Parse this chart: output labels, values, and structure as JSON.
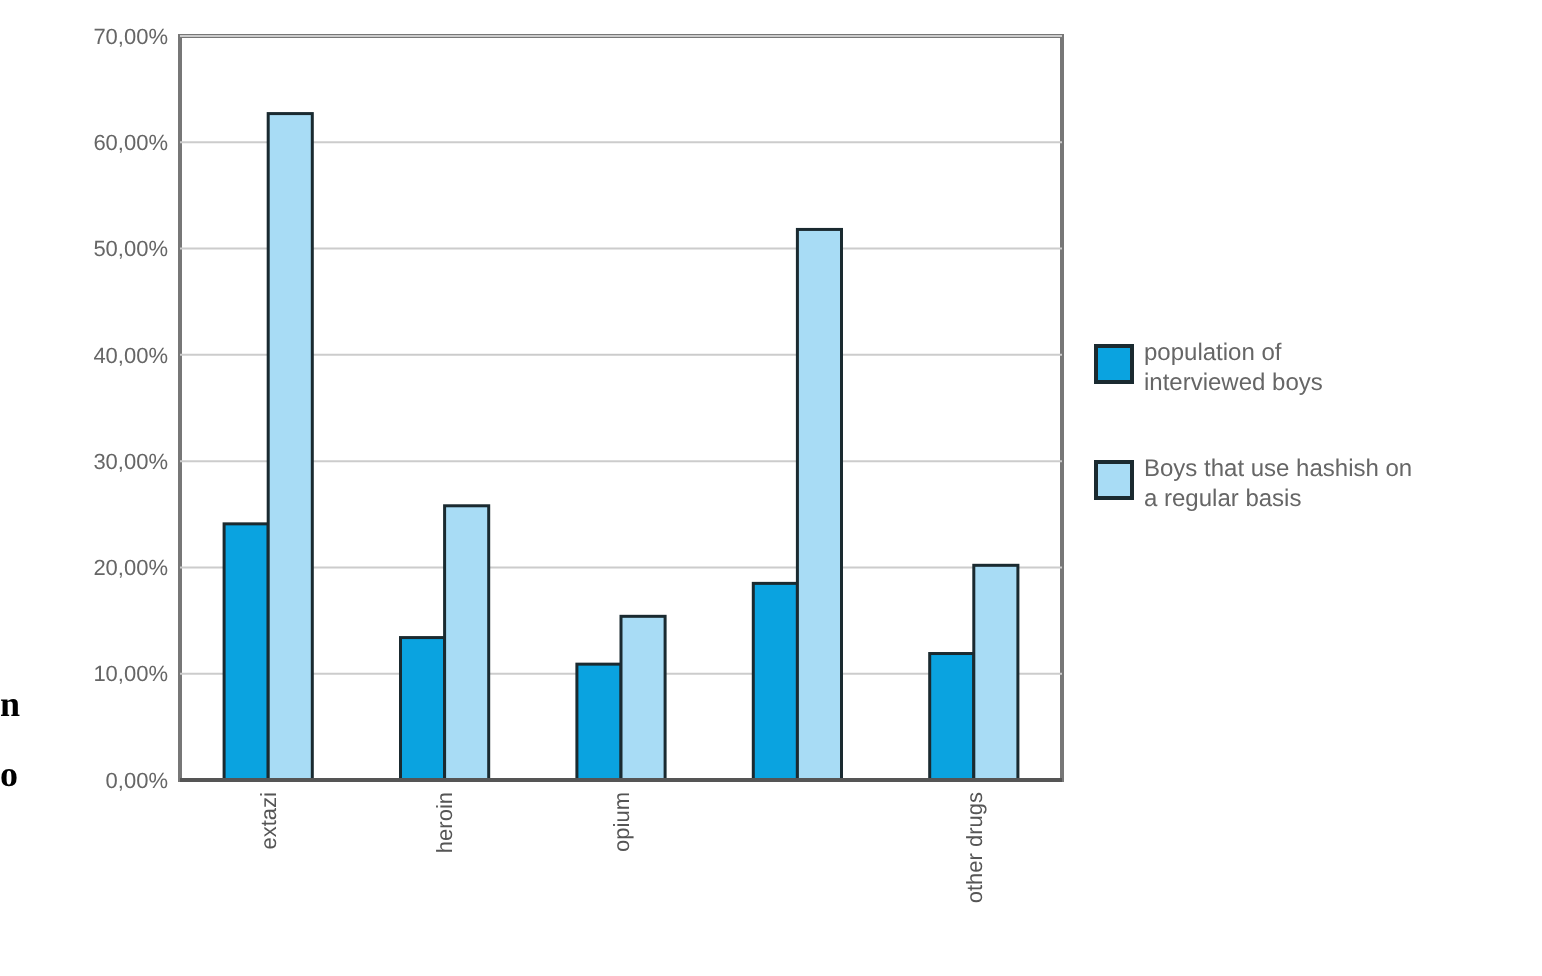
{
  "chart_data": {
    "type": "bar",
    "categories": [
      "extazi",
      "heroin",
      "opium",
      null,
      "other drugs"
    ],
    "series": [
      {
        "name": "population of interviewed boys",
        "color": "#0aa3e0",
        "values": [
          24.1,
          13.4,
          10.9,
          18.5,
          11.9
        ]
      },
      {
        "name": "Boys that use hashish on a regular basis",
        "color": "#a8dcf5",
        "values": [
          62.7,
          25.8,
          15.4,
          51.8,
          20.2
        ]
      }
    ],
    "ylim": [
      0,
      70
    ],
    "yticks": [
      {
        "value": 0,
        "label": "0,00%"
      },
      {
        "value": 10,
        "label": "10,00%"
      },
      {
        "value": 20,
        "label": "20,00%"
      },
      {
        "value": 30,
        "label": "30,00%"
      },
      {
        "value": 40,
        "label": "40,00%"
      },
      {
        "value": 50,
        "label": "50,00%"
      },
      {
        "value": 60,
        "label": "60,00%"
      },
      {
        "value": 70,
        "label": "70,00%"
      }
    ],
    "grid": "y",
    "legend": "right",
    "annotations": [
      "n",
      "o"
    ]
  }
}
